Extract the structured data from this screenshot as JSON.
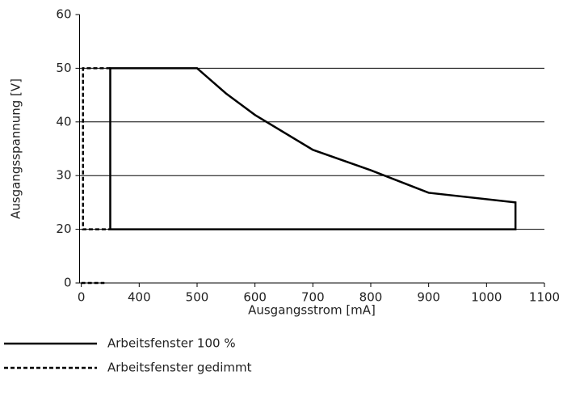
{
  "chart_data": {
    "type": "line",
    "x_label": "Ausgangsstrom [mA]",
    "y_label": "Ausgangsspannung [V]",
    "xlim": [
      297,
      1100
    ],
    "xticks": [
      {
        "value": 300,
        "label": "0"
      },
      400,
      500,
      600,
      700,
      800,
      900,
      1000,
      1100
    ],
    "ylim": [
      10,
      60
    ],
    "yticks": [
      {
        "value": 10,
        "label": "0"
      },
      20,
      30,
      40,
      50,
      60
    ],
    "grid": true,
    "series": [
      {
        "name": "Arbeitsfenster 100 %",
        "color": "#000000",
        "dash": false,
        "x": [
          350,
          350,
          500,
          550,
          600,
          700,
          800,
          900,
          1050,
          1050,
          350
        ],
        "values": [
          20,
          50,
          50,
          45.3,
          41.3,
          34.8,
          31,
          26.8,
          25,
          20,
          20
        ]
      },
      {
        "name": "Arbeitsfenster gedimmt",
        "color": "#000000",
        "dash": true,
        "x": [
          350,
          303,
          303,
          350,
          null,
          300,
          340
        ],
        "values": [
          50,
          50,
          20,
          20,
          null,
          10,
          10
        ]
      }
    ]
  }
}
